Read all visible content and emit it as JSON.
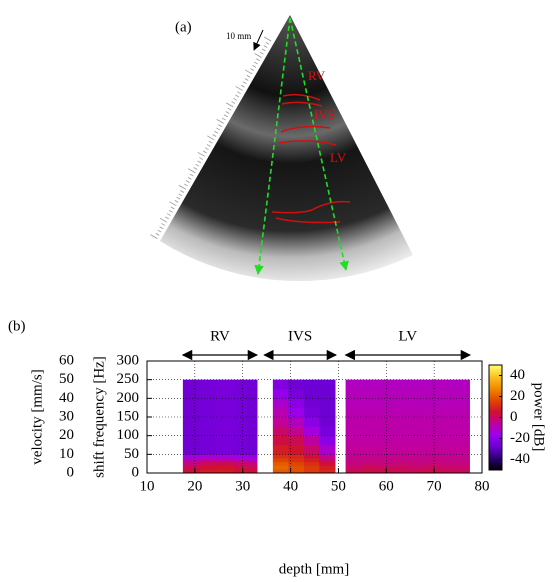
{
  "panel_a": {
    "label": "(a)",
    "scale_label": "10 mm",
    "region_labels": [
      "RV",
      "IVS",
      "LV"
    ]
  },
  "chart_data": {
    "type": "heatmap",
    "panel_label": "(b)",
    "x_label": "depth [mm]",
    "y_label": "shift frequency [Hz]",
    "y2_label": "velocity [mm/s]",
    "colorbar_label": "power [dB]",
    "xlim": [
      10,
      80
    ],
    "xticks": [
      10,
      20,
      30,
      40,
      50,
      60,
      70,
      80
    ],
    "ylim": [
      0,
      300
    ],
    "yticks": [
      0,
      50,
      100,
      150,
      200,
      250,
      300
    ],
    "y2lim": [
      0,
      60
    ],
    "y2ticks": [
      0,
      10,
      20,
      30,
      40,
      50,
      60
    ],
    "zlim": [
      -50,
      50
    ],
    "zticks": [
      -40,
      -20,
      0,
      20,
      40
    ],
    "colors": [
      "#000000",
      "#2a0070",
      "#6a00d0",
      "#9a00f0",
      "#c000a0",
      "#d01030",
      "#e04800",
      "#f08800",
      "#fbc020",
      "#ffff70"
    ],
    "grid": true,
    "regions": [
      {
        "label": "RV",
        "range": [
          17.5,
          33
        ]
      },
      {
        "label": "IVS",
        "range": [
          34.5,
          49.5
        ]
      },
      {
        "label": "LV",
        "range": [
          51.5,
          77.5
        ]
      }
    ],
    "x_edges": [
      17.5,
      21,
      24.5,
      28,
      31,
      33,
      36.3,
      39.5,
      42.8,
      46,
      49.3,
      51.5,
      55,
      58,
      61.5,
      65,
      68,
      71.5,
      74.5,
      77.4
    ],
    "y_edges": [
      0,
      10,
      20,
      30,
      40,
      50,
      75,
      100,
      125,
      150,
      175,
      200,
      225,
      250
    ],
    "z": [
      [
        5,
        8,
        8,
        6,
        4,
        null,
        20,
        18,
        14,
        10,
        null,
        2,
        3,
        3,
        2,
        2,
        3,
        2,
        1
      ],
      [
        2,
        5,
        6,
        4,
        2,
        null,
        22,
        18,
        14,
        8,
        null,
        0,
        2,
        1,
        1,
        0,
        1,
        0,
        0
      ],
      [
        -2,
        2,
        3,
        0,
        -2,
        null,
        20,
        16,
        12,
        5,
        null,
        -2,
        -1,
        -2,
        -1,
        -2,
        -1,
        -2,
        -3
      ],
      [
        -8,
        -5,
        -6,
        -8,
        -10,
        null,
        16,
        12,
        8,
        0,
        null,
        -3,
        -3,
        -3,
        -3,
        -3,
        -3,
        -3,
        -3
      ],
      [
        -15,
        -14,
        -15,
        -16,
        -18,
        null,
        12,
        10,
        5,
        -5,
        null,
        -4,
        -4,
        -4,
        -4,
        -4,
        -4,
        -4,
        -4
      ],
      [
        -26,
        -25,
        -24,
        -25,
        -26,
        null,
        8,
        6,
        0,
        -12,
        null,
        -5,
        -5,
        -5,
        -5,
        -5,
        -5,
        -5,
        -5
      ],
      [
        -26,
        -25,
        -24,
        -25,
        -26,
        null,
        4,
        2,
        -6,
        -20,
        null,
        -6,
        -6,
        -6,
        -6,
        -6,
        -6,
        -6,
        -6
      ],
      [
        -26,
        -25,
        -24,
        -25,
        -26,
        null,
        0,
        -4,
        -14,
        -24,
        null,
        -7,
        -7,
        -7,
        -7,
        -7,
        -7,
        -7,
        -7
      ],
      [
        -26,
        -25,
        -24,
        -25,
        -26,
        null,
        -5,
        -10,
        -20,
        -26,
        null,
        -7,
        -7,
        -7,
        -7,
        -7,
        -7,
        -7,
        -7
      ],
      [
        -26,
        -25,
        -24,
        -25,
        -26,
        null,
        -8,
        -16,
        -24,
        -27,
        null,
        -8,
        -8,
        -8,
        -8,
        -8,
        -8,
        -8,
        -8
      ],
      [
        -26,
        -25,
        -24,
        -25,
        -26,
        null,
        -12,
        -20,
        -26,
        -27,
        null,
        -9,
        -9,
        -9,
        -9,
        -9,
        -9,
        -9,
        -9
      ],
      [
        -26,
        -25,
        -24,
        -25,
        -26,
        null,
        -18,
        -24,
        -27,
        -27,
        null,
        -9,
        -9,
        -9,
        -9,
        -9,
        -9,
        -9,
        -9
      ],
      [
        -26,
        -25,
        -24,
        -25,
        -26,
        null,
        -22,
        -26,
        -27,
        -27,
        null,
        -10,
        -10,
        -10,
        -10,
        -10,
        -10,
        -10,
        -10
      ]
    ]
  }
}
